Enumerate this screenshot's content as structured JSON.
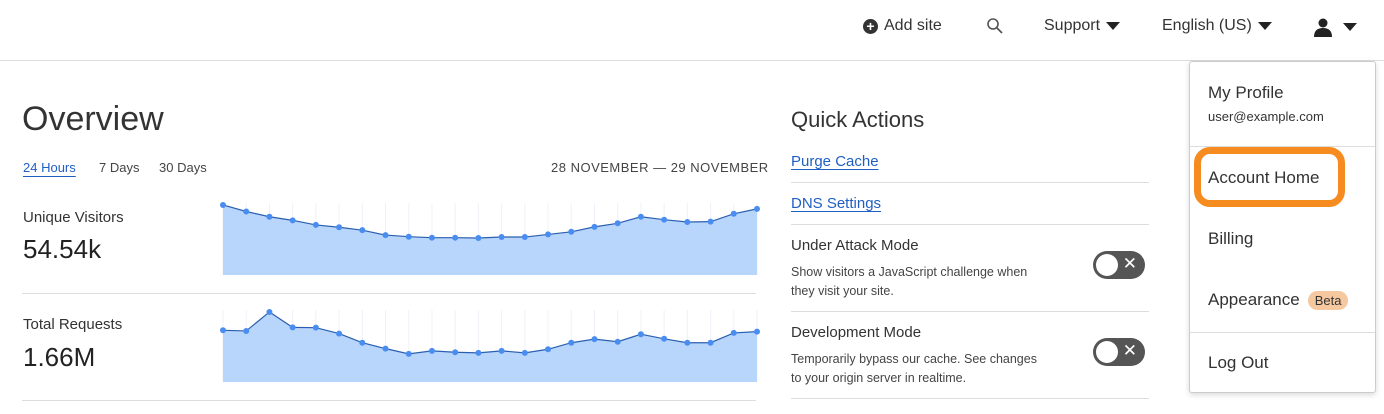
{
  "topbar": {
    "add_site": "Add site",
    "support": "Support",
    "language": "English (US)"
  },
  "overview": {
    "title": "Overview",
    "ranges": [
      "24 Hours",
      "7 Days",
      "30 Days"
    ],
    "active_range": "24 Hours",
    "date_range": "28 NOVEMBER — 29 NOVEMBER",
    "metrics": [
      {
        "label": "Unique Visitors",
        "value": "54.54k"
      },
      {
        "label": "Total Requests",
        "value": "1.66M"
      }
    ]
  },
  "chart_data": [
    {
      "type": "area",
      "values": [
        214,
        194,
        178,
        167,
        153,
        146,
        137,
        122,
        117,
        114,
        114,
        113,
        116,
        116,
        124,
        132,
        147,
        158,
        178,
        169,
        162,
        163,
        187,
        202
      ],
      "color": "#4a8df0",
      "fill": "#b8d5fb"
    },
    {
      "type": "area",
      "values": [
        158,
        156,
        214,
        167,
        166,
        148,
        120,
        102,
        86,
        95,
        91,
        89,
        95,
        89,
        100,
        120,
        131,
        123,
        146,
        132,
        120,
        120,
        150,
        154
      ],
      "color": "#4a8df0",
      "fill": "#b8d5fb"
    }
  ],
  "quick_actions": {
    "title": "Quick Actions",
    "links": [
      "Purge Cache",
      "DNS Settings"
    ],
    "toggles": [
      {
        "title": "Under Attack Mode",
        "desc": "Show visitors a JavaScript challenge when they visit your site.",
        "on": false
      },
      {
        "title": "Development Mode",
        "desc": "Temporarily bypass our cache. See changes to your origin server in realtime.",
        "on": false
      }
    ]
  },
  "user_menu": {
    "profile": "My Profile",
    "email": "user@example.com",
    "account_home": "Account Home",
    "billing": "Billing",
    "appearance": "Appearance",
    "beta": "Beta",
    "logout": "Log Out",
    "highlight_color": "#f68b1f"
  }
}
